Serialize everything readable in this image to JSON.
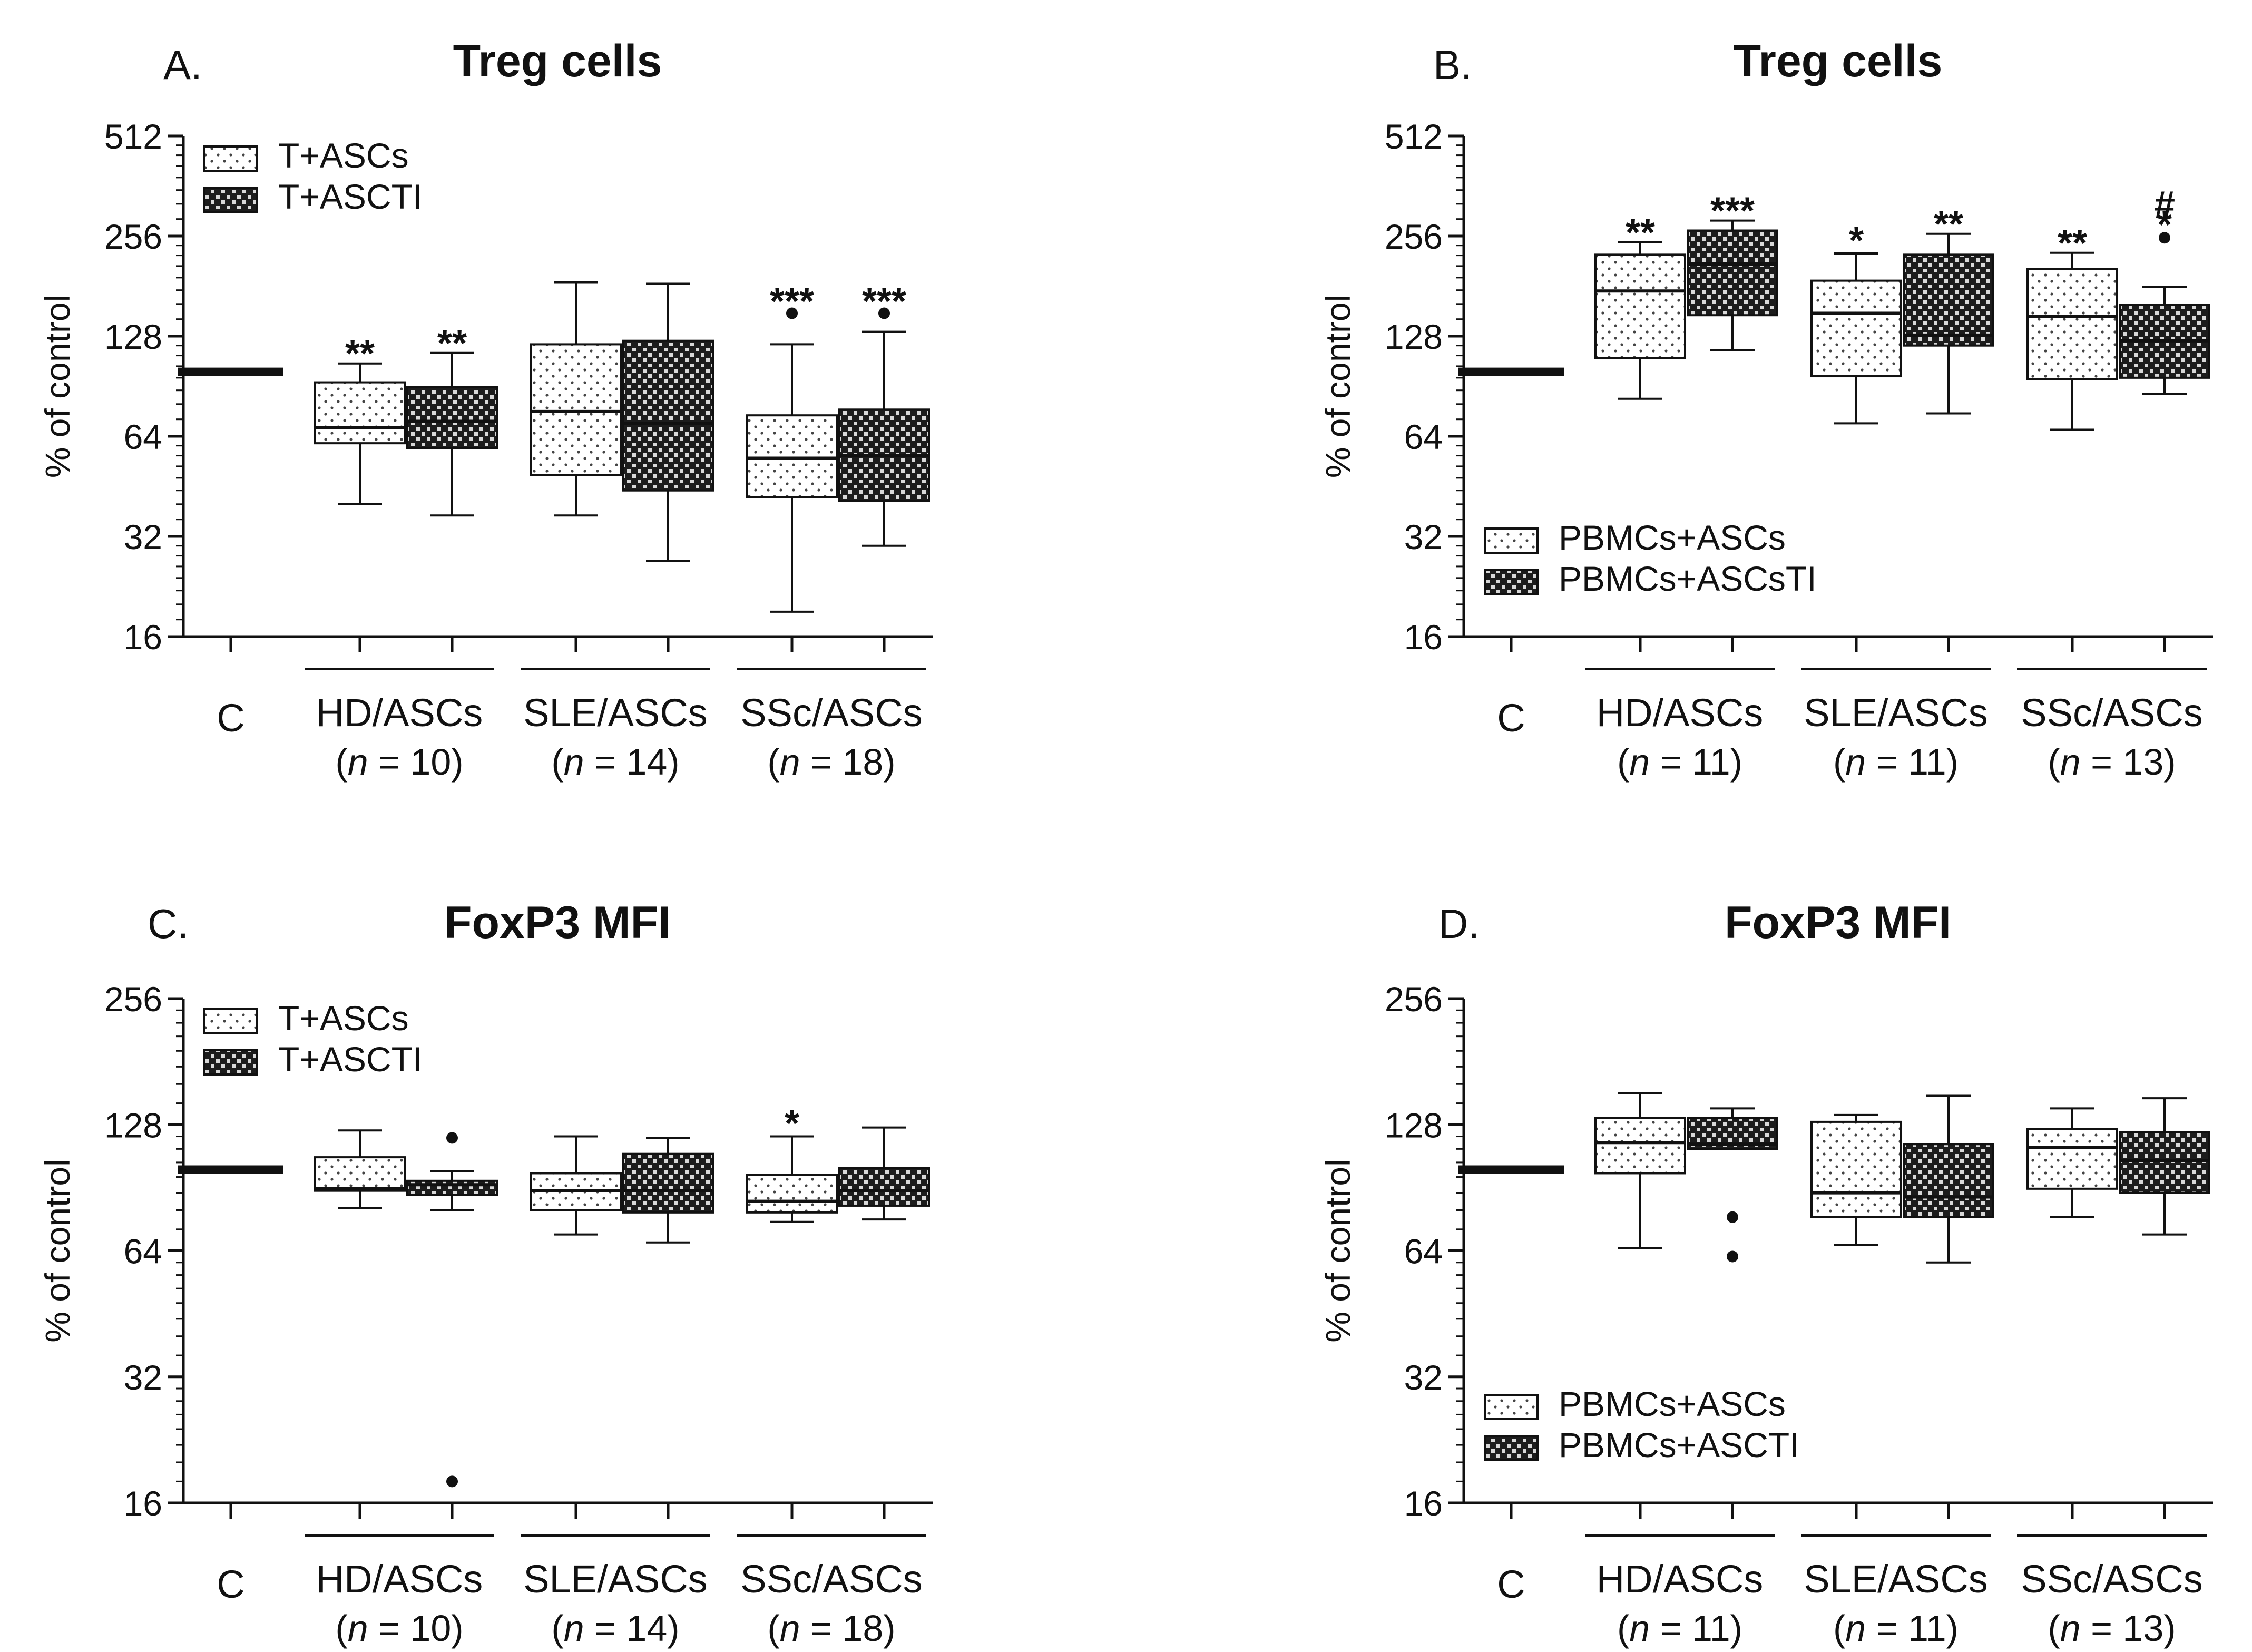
{
  "chart_data": [
    {
      "id": "A",
      "type": "box",
      "panel_label": "A.",
      "title": "Treg cells",
      "ylabel": "% of control",
      "yscale": "log2",
      "ylim": [
        16,
        512
      ],
      "yticks": [
        "16",
        "32",
        "64",
        "128",
        "256",
        "512"
      ],
      "control_label": "C",
      "control_value": 100,
      "legend": {
        "position": "top-left",
        "entries": [
          "T+ASCs",
          "T+ASCTI"
        ]
      },
      "groups": [
        {
          "label": "HD/ASCs",
          "n_prefix": "(",
          "n_var": "n",
          "n_suffix": " = 10)"
        },
        {
          "label": "SLE/ASCs",
          "n_prefix": "(",
          "n_var": "n",
          "n_suffix": " = 14)"
        },
        {
          "label": "SSc/ASCs",
          "n_prefix": "(",
          "n_var": "n",
          "n_suffix": " = 18)"
        }
      ],
      "boxes": [
        {
          "group": 0,
          "series": 0,
          "min": 40,
          "q1": 61,
          "median": 68,
          "q3": 93,
          "max": 106,
          "label": "**",
          "outliers": []
        },
        {
          "group": 0,
          "series": 1,
          "min": 37,
          "q1": 59,
          "median": 71,
          "q3": 90,
          "max": 114,
          "label": "**",
          "outliers": []
        },
        {
          "group": 1,
          "series": 0,
          "min": 37,
          "q1": 49,
          "median": 76,
          "q3": 121,
          "max": 186,
          "label": "",
          "outliers": []
        },
        {
          "group": 1,
          "series": 1,
          "min": 27,
          "q1": 44,
          "median": 70,
          "q3": 124,
          "max": 184,
          "label": "",
          "outliers": []
        },
        {
          "group": 2,
          "series": 0,
          "min": 19,
          "q1": 42,
          "median": 55,
          "q3": 74,
          "max": 121,
          "label": "***",
          "outliers": [
            150
          ]
        },
        {
          "group": 2,
          "series": 1,
          "min": 30,
          "q1": 41,
          "median": 56,
          "q3": 77,
          "max": 132,
          "label": "***",
          "outliers": [
            150
          ]
        }
      ]
    },
    {
      "id": "B",
      "type": "box",
      "panel_label": "B.",
      "title": "Treg cells",
      "ylabel": "% of control",
      "yscale": "log2",
      "ylim": [
        16,
        512
      ],
      "yticks": [
        "16",
        "32",
        "64",
        "128",
        "256",
        "512"
      ],
      "control_label": "C",
      "control_value": 100,
      "legend": {
        "position": "bottom-left",
        "entries": [
          "PBMCs+ASCs",
          "PBMCs+ASCsTI"
        ]
      },
      "groups": [
        {
          "label": "HD/ASCs",
          "n_prefix": "(",
          "n_var": "n",
          "n_suffix": " = 11)"
        },
        {
          "label": "SLE/ASCs",
          "n_prefix": "(",
          "n_var": "n",
          "n_suffix": " = 11)"
        },
        {
          "label": "SSc/ASCs",
          "n_prefix": "(",
          "n_var": "n",
          "n_suffix": " = 13)"
        }
      ],
      "boxes": [
        {
          "group": 0,
          "series": 0,
          "min": 83,
          "q1": 110,
          "median": 175,
          "q3": 225,
          "max": 245,
          "label": "**",
          "outliers": []
        },
        {
          "group": 0,
          "series": 1,
          "min": 116,
          "q1": 148,
          "median": 211,
          "q3": 266,
          "max": 285,
          "label": "***",
          "outliers": []
        },
        {
          "group": 1,
          "series": 0,
          "min": 70,
          "q1": 97,
          "median": 150,
          "q3": 188,
          "max": 227,
          "label": "*",
          "outliers": []
        },
        {
          "group": 1,
          "series": 1,
          "min": 75,
          "q1": 120,
          "median": 129,
          "q3": 225,
          "max": 260,
          "label": "**",
          "outliers": []
        },
        {
          "group": 2,
          "series": 0,
          "min": 67,
          "q1": 95,
          "median": 147,
          "q3": 204,
          "max": 228,
          "label": "**",
          "outliers": []
        },
        {
          "group": 2,
          "series": 1,
          "min": 86,
          "q1": 96,
          "median": 124,
          "q3": 159,
          "max": 180,
          "label": "*",
          "outliers": [
            253
          ],
          "extra_label": "#"
        }
      ]
    },
    {
      "id": "C",
      "type": "box",
      "panel_label": "C.",
      "title": "FoxP3 MFI",
      "ylabel": "% of control",
      "yscale": "log2",
      "ylim": [
        16,
        256
      ],
      "yticks": [
        "16",
        "32",
        "64",
        "128",
        "256"
      ],
      "control_label": "C",
      "control_value": 100,
      "legend": {
        "position": "top-left",
        "entries": [
          "T+ASCs",
          "T+ASCTI"
        ]
      },
      "groups": [
        {
          "label": "HD/ASCs",
          "n_prefix": "(",
          "n_var": "n",
          "n_suffix": " = 10)"
        },
        {
          "label": "SLE/ASCs",
          "n_prefix": "(",
          "n_var": "n",
          "n_suffix": " = 14)"
        },
        {
          "label": "SSc/ASCs",
          "n_prefix": "(",
          "n_var": "n",
          "n_suffix": " = 18)"
        }
      ],
      "boxes": [
        {
          "group": 0,
          "series": 0,
          "min": 81,
          "q1": 89,
          "median": 90,
          "q3": 107,
          "max": 124,
          "label": "",
          "outliers": []
        },
        {
          "group": 0,
          "series": 1,
          "min": 80,
          "q1": 87,
          "median": 92,
          "q3": 94,
          "max": 99,
          "label": "",
          "outliers": [
            119,
            18
          ]
        },
        {
          "group": 1,
          "series": 0,
          "min": 70,
          "q1": 80,
          "median": 89,
          "q3": 98,
          "max": 120,
          "label": "",
          "outliers": []
        },
        {
          "group": 1,
          "series": 1,
          "min": 67,
          "q1": 79,
          "median": 89,
          "q3": 109,
          "max": 119,
          "label": "",
          "outliers": []
        },
        {
          "group": 2,
          "series": 0,
          "min": 75,
          "q1": 79,
          "median": 84,
          "q3": 97,
          "max": 120,
          "label": "*",
          "outliers": []
        },
        {
          "group": 2,
          "series": 1,
          "min": 76,
          "q1": 82,
          "median": 89,
          "q3": 101,
          "max": 126,
          "label": "",
          "outliers": []
        }
      ]
    },
    {
      "id": "D",
      "type": "box",
      "panel_label": "D.",
      "title": "FoxP3 MFI",
      "ylabel": "% of control",
      "yscale": "log2",
      "ylim": [
        16,
        256
      ],
      "yticks": [
        "16",
        "32",
        "64",
        "128",
        "256"
      ],
      "control_label": "C",
      "control_value": 100,
      "legend": {
        "position": "bottom-left",
        "entries": [
          "PBMCs+ASCs",
          "PBMCs+ASCTI"
        ]
      },
      "groups": [
        {
          "label": "HD/ASCs",
          "n_prefix": "(",
          "n_var": "n",
          "n_suffix": " = 11)"
        },
        {
          "label": "SLE/ASCs",
          "n_prefix": "(",
          "n_var": "n",
          "n_suffix": " = 11)"
        },
        {
          "label": "SSc/ASCs",
          "n_prefix": "(",
          "n_var": "n",
          "n_suffix": " = 13)"
        }
      ],
      "boxes": [
        {
          "group": 0,
          "series": 0,
          "min": 65,
          "q1": 98,
          "median": 116,
          "q3": 133,
          "max": 152,
          "label": "",
          "outliers": []
        },
        {
          "group": 0,
          "series": 1,
          "min": 112,
          "q1": 112,
          "median": 115,
          "q3": 133,
          "max": 140,
          "label": "",
          "outliers": [
            77,
            62
          ]
        },
        {
          "group": 1,
          "series": 0,
          "min": 66,
          "q1": 77,
          "median": 88,
          "q3": 130,
          "max": 135,
          "label": "",
          "outliers": []
        },
        {
          "group": 1,
          "series": 1,
          "min": 60,
          "q1": 77,
          "median": 86,
          "q3": 115,
          "max": 150,
          "label": "",
          "outliers": []
        },
        {
          "group": 2,
          "series": 0,
          "min": 77,
          "q1": 90,
          "median": 113,
          "q3": 125,
          "max": 140,
          "label": "",
          "outliers": []
        },
        {
          "group": 2,
          "series": 1,
          "min": 70,
          "q1": 88,
          "median": 105,
          "q3": 123,
          "max": 148,
          "label": "",
          "outliers": []
        }
      ]
    }
  ]
}
